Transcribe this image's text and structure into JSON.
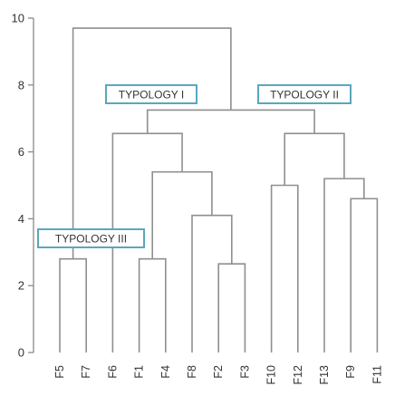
{
  "chart_data": {
    "type": "dendrogram",
    "title": "",
    "xlabel": "",
    "ylabel": "",
    "ylim": [
      0,
      10
    ],
    "yticks": [
      0,
      2,
      4,
      6,
      8,
      10
    ],
    "grid": false,
    "leaves": [
      "F5",
      "F7",
      "F6",
      "F1",
      "F4",
      "F8",
      "F2",
      "F3",
      "F10",
      "F12",
      "F13",
      "F9",
      "F11"
    ],
    "merges": [
      {
        "id": "m1",
        "left": "F5",
        "right": "F7",
        "height": 2.8
      },
      {
        "id": "m2",
        "left": "F2",
        "right": "F3",
        "height": 2.65
      },
      {
        "id": "m3",
        "left": "F1",
        "right": "F4",
        "height": 2.8
      },
      {
        "id": "m4",
        "left": "F8",
        "right": "m2",
        "height": 4.1
      },
      {
        "id": "m5",
        "left": "m3",
        "right": "m4",
        "height": 5.4
      },
      {
        "id": "m6",
        "left": "F6",
        "right": "m5",
        "height": 6.55
      },
      {
        "id": "m7",
        "left": "F9",
        "right": "F11",
        "height": 4.6
      },
      {
        "id": "m8",
        "left": "F13",
        "right": "m7",
        "height": 5.2
      },
      {
        "id": "m9",
        "left": "F10",
        "right": "F12",
        "height": 5.0
      },
      {
        "id": "m10",
        "left": "m9",
        "right": "m8",
        "height": 6.55
      },
      {
        "id": "m11",
        "left": "m6",
        "right": "m10",
        "height": 7.25
      },
      {
        "id": "m12",
        "left": "m1",
        "right": "m11",
        "height": 9.7
      }
    ],
    "annotations": [
      {
        "text": "TYPOLOGY I",
        "cluster": "m6"
      },
      {
        "text": "TYPOLOGY II",
        "cluster": "m10"
      },
      {
        "text": "TYPOLOGY III",
        "cluster": "m1"
      }
    ]
  },
  "colors": {
    "branch": "#8f8f8f",
    "axis": "#8a8a8a",
    "box_border": "#5aa7be",
    "text": "#333333"
  }
}
